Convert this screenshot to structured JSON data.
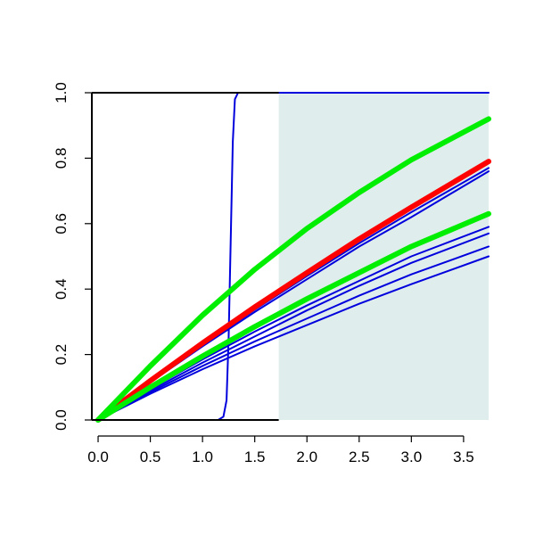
{
  "chart_data": {
    "type": "line",
    "title": "",
    "xlabel": "",
    "ylabel": "",
    "xlim": [
      -0.06,
      3.74
    ],
    "ylim": [
      0,
      1
    ],
    "x_ticks": [
      "0.0",
      "0.5",
      "1.0",
      "1.5",
      "2.0",
      "2.5",
      "3.0",
      "3.5"
    ],
    "y_ticks": [
      "0.0",
      "0.2",
      "0.4",
      "0.6",
      "0.8",
      "1.0"
    ],
    "grid": false,
    "shaded_region": {
      "x_from": 1.73,
      "x_to": 3.74,
      "y_from": 0,
      "y_to": 1,
      "color": "#e0eded"
    },
    "colors": {
      "blue": "#0000dd",
      "red": "#ff0000",
      "green": "#00ee00",
      "axis": "#000000"
    },
    "series": [
      {
        "color": "#0000dd",
        "width": "thin",
        "points": [
          [
            0,
            0
          ],
          [
            1.15,
            0
          ],
          [
            1.2,
            0.01
          ],
          [
            1.23,
            0.06
          ],
          [
            1.25,
            0.25
          ],
          [
            1.27,
            0.55
          ],
          [
            1.29,
            0.85
          ],
          [
            1.31,
            0.98
          ],
          [
            1.34,
            1
          ],
          [
            3.74,
            1
          ]
        ]
      },
      {
        "color": "#0000dd",
        "width": "thin",
        "points": [
          [
            0,
            0
          ],
          [
            0.5,
            0.08
          ],
          [
            1.0,
            0.155
          ],
          [
            1.5,
            0.225
          ],
          [
            2.0,
            0.29
          ],
          [
            2.5,
            0.355
          ],
          [
            3.0,
            0.415
          ],
          [
            3.74,
            0.5
          ]
        ]
      },
      {
        "color": "#0000dd",
        "width": "thin",
        "points": [
          [
            0,
            0
          ],
          [
            0.5,
            0.085
          ],
          [
            1.0,
            0.165
          ],
          [
            1.5,
            0.24
          ],
          [
            2.0,
            0.31
          ],
          [
            2.5,
            0.38
          ],
          [
            3.0,
            0.445
          ],
          [
            3.74,
            0.53
          ]
        ]
      },
      {
        "color": "#0000dd",
        "width": "thin",
        "points": [
          [
            0,
            0
          ],
          [
            0.5,
            0.09
          ],
          [
            1.0,
            0.175
          ],
          [
            1.5,
            0.255
          ],
          [
            2.0,
            0.335
          ],
          [
            2.5,
            0.41
          ],
          [
            3.0,
            0.48
          ],
          [
            3.74,
            0.57
          ]
        ]
      },
      {
        "color": "#0000dd",
        "width": "thin",
        "points": [
          [
            0,
            0
          ],
          [
            0.5,
            0.095
          ],
          [
            1.0,
            0.185
          ],
          [
            1.5,
            0.27
          ],
          [
            2.0,
            0.35
          ],
          [
            2.5,
            0.425
          ],
          [
            3.0,
            0.5
          ],
          [
            3.74,
            0.59
          ]
        ]
      },
      {
        "color": "#0000dd",
        "width": "thin",
        "points": [
          [
            0,
            0
          ],
          [
            0.5,
            0.115
          ],
          [
            1.0,
            0.225
          ],
          [
            1.5,
            0.33
          ],
          [
            2.0,
            0.43
          ],
          [
            2.5,
            0.53
          ],
          [
            3.0,
            0.62
          ],
          [
            3.74,
            0.76
          ]
        ]
      },
      {
        "color": "#0000dd",
        "width": "thin",
        "points": [
          [
            0,
            0
          ],
          [
            0.5,
            0.117
          ],
          [
            1.0,
            0.229
          ],
          [
            1.5,
            0.337
          ],
          [
            2.0,
            0.44
          ],
          [
            2.5,
            0.54
          ],
          [
            3.0,
            0.635
          ],
          [
            3.74,
            0.77
          ]
        ]
      },
      {
        "color": "#ff0000",
        "width": "thick",
        "points": [
          [
            0,
            0
          ],
          [
            0.5,
            0.12
          ],
          [
            1.0,
            0.235
          ],
          [
            1.5,
            0.345
          ],
          [
            2.0,
            0.45
          ],
          [
            2.5,
            0.553
          ],
          [
            3.0,
            0.65
          ],
          [
            3.74,
            0.79
          ]
        ]
      },
      {
        "color": "#00ee00",
        "width": "thick",
        "points": [
          [
            0,
            0
          ],
          [
            0.5,
            0.1
          ],
          [
            1.0,
            0.195
          ],
          [
            1.5,
            0.285
          ],
          [
            2.0,
            0.37
          ],
          [
            2.5,
            0.45
          ],
          [
            3.0,
            0.53
          ],
          [
            3.74,
            0.63
          ]
        ]
      },
      {
        "color": "#00ee00",
        "width": "thick",
        "points": [
          [
            0,
            0
          ],
          [
            0.5,
            0.165
          ],
          [
            1.0,
            0.32
          ],
          [
            1.5,
            0.46
          ],
          [
            2.0,
            0.585
          ],
          [
            2.5,
            0.695
          ],
          [
            3.0,
            0.795
          ],
          [
            3.74,
            0.92
          ]
        ]
      }
    ]
  }
}
